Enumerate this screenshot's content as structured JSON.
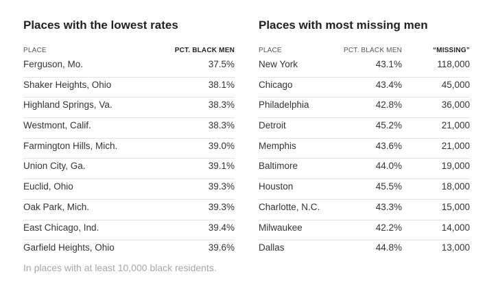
{
  "left_table": {
    "title": "Places with the lowest rates",
    "headers": {
      "place": "PLACE",
      "pct": "PCT. BLACK MEN"
    },
    "rows": [
      {
        "place": "Ferguson, Mo.",
        "pct": "37.5%"
      },
      {
        "place": "Shaker Heights, Ohio",
        "pct": "38.1%"
      },
      {
        "place": "Highland Springs, Va.",
        "pct": "38.3%"
      },
      {
        "place": "Westmont, Calif.",
        "pct": "38.3%"
      },
      {
        "place": "Farmington Hills, Mich.",
        "pct": "39.0%"
      },
      {
        "place": "Union City, Ga.",
        "pct": "39.1%"
      },
      {
        "place": "Euclid, Ohio",
        "pct": "39.3%"
      },
      {
        "place": "Oak Park, Mich.",
        "pct": "39.3%"
      },
      {
        "place": "East Chicago, Ind.",
        "pct": "39.4%"
      },
      {
        "place": "Garfield Heights, Ohio",
        "pct": "39.6%"
      }
    ]
  },
  "right_table": {
    "title": "Places with most missing men",
    "headers": {
      "place": "PLACE",
      "pct": "PCT. BLACK MEN",
      "missing": "“MISSING”"
    },
    "rows": [
      {
        "place": "New York",
        "pct": "43.1%",
        "missing": "118,000"
      },
      {
        "place": "Chicago",
        "pct": "43.4%",
        "missing": "45,000"
      },
      {
        "place": "Philadelphia",
        "pct": "42.8%",
        "missing": "36,000"
      },
      {
        "place": "Detroit",
        "pct": "45.2%",
        "missing": "21,000"
      },
      {
        "place": "Memphis",
        "pct": "43.6%",
        "missing": "21,000"
      },
      {
        "place": "Baltimore",
        "pct": "44.0%",
        "missing": "19,000"
      },
      {
        "place": "Houston",
        "pct": "45.5%",
        "missing": "18,000"
      },
      {
        "place": "Charlotte, N.C.",
        "pct": "43.3%",
        "missing": "15,000"
      },
      {
        "place": "Milwaukee",
        "pct": "42.2%",
        "missing": "14,000"
      },
      {
        "place": "Dallas",
        "pct": "44.8%",
        "missing": "13,000"
      }
    ]
  },
  "footnote": "In places with at least 10,000 black residents."
}
